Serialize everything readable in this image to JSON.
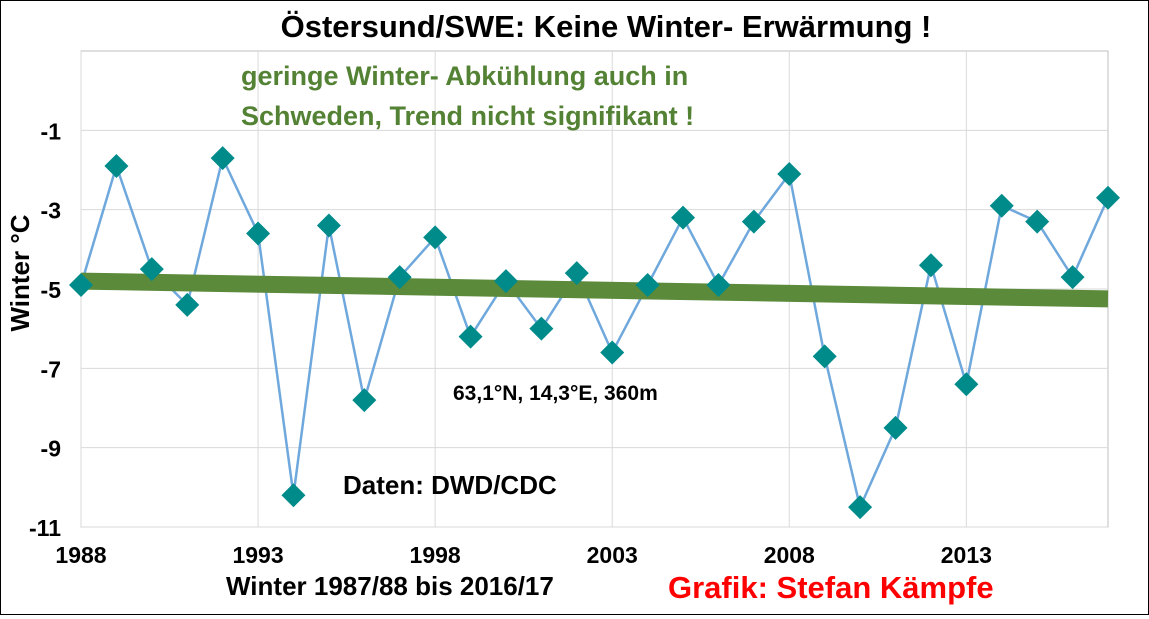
{
  "chart_data": {
    "type": "line",
    "title": "Östersund/SWE:  Keine Winter- Erwärmung !",
    "xlabel": "Winter 1987/88 bis 2016/17",
    "ylabel": "Winter °C",
    "xlim": [
      1988,
      2017
    ],
    "ylim": [
      -11,
      1
    ],
    "x_ticks": [
      1988,
      1993,
      1998,
      2003,
      2008,
      2013
    ],
    "y_ticks": [
      -1,
      -3,
      -5,
      -7,
      -9,
      -11
    ],
    "grid": true,
    "series": [
      {
        "x": [
          1988,
          1989,
          1990,
          1991,
          1992,
          1993,
          1994,
          1995,
          1996,
          1997,
          1998,
          1999,
          2000,
          2001,
          2002,
          2003,
          2004,
          2005,
          2006,
          2007,
          2008,
          2009,
          2010,
          2011,
          2012,
          2013,
          2014,
          2015,
          2016,
          2017
        ],
        "values": [
          -4.9,
          -1.9,
          -4.5,
          -5.4,
          -1.7,
          -3.6,
          -10.2,
          -3.4,
          -7.8,
          -4.7,
          -3.7,
          -6.2,
          -4.8,
          -6.0,
          -4.6,
          -6.6,
          -4.9,
          -3.2,
          -4.9,
          -3.3,
          -2.1,
          -6.7,
          -10.5,
          -8.5,
          -4.4,
          -7.4,
          -2.9,
          -3.3,
          -4.7,
          -2.7
        ],
        "color": "#6fa8dc",
        "marker_color": "#008b8b"
      },
      {
        "type": "trend",
        "x": [
          1988,
          2017
        ],
        "values": [
          -4.8,
          -5.25
        ],
        "color": "#5a8a3a"
      }
    ],
    "annotations": {
      "trend_note_line1": "geringe Winter- Abkühlung auch in",
      "trend_note_line2": "Schweden, Trend nicht signifikant !",
      "trend_note_color": "#548235",
      "location": "63,1°N, 14,3°E, 360m",
      "source": "Daten: DWD/CDC",
      "credit": "Grafik: Stefan Kämpfe",
      "credit_color": "#ff0000"
    }
  }
}
